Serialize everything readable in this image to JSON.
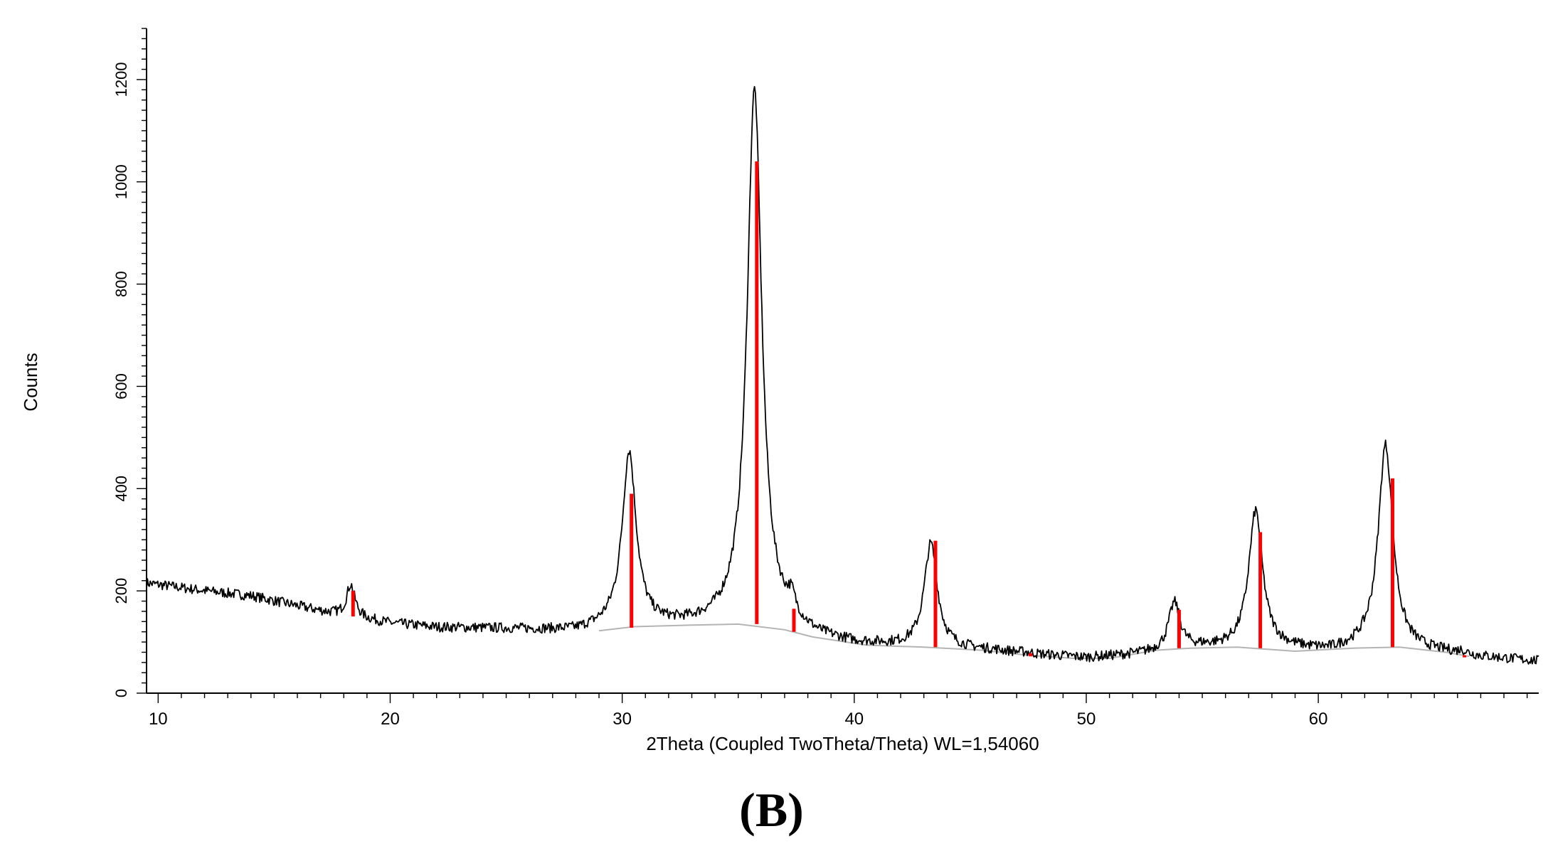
{
  "panel_label": "(B)",
  "chart_data": {
    "type": "line",
    "xlabel": "2Theta (Coupled TwoTheta/Theta) WL=1,54060",
    "ylabel": "Counts",
    "xlim": [
      9.5,
      69.5
    ],
    "ylim": [
      0,
      1300
    ],
    "x_ticks": [
      10,
      20,
      30,
      40,
      50,
      60
    ],
    "y_ticks": [
      0,
      200,
      400,
      600,
      800,
      1000,
      1200
    ],
    "y_tick_labels": [
      "0",
      "200",
      "400",
      "600",
      "800",
      "1000",
      "1200"
    ],
    "grid": false,
    "colors": {
      "trace": "#000000",
      "background_fit": "#b4b4b4",
      "reference_peaks": "#ff0000"
    },
    "background_curve": [
      [
        29.0,
        122
      ],
      [
        30.5,
        130
      ],
      [
        33.0,
        133
      ],
      [
        35.0,
        135
      ],
      [
        37.0,
        124
      ],
      [
        38.2,
        110
      ],
      [
        40.5,
        94
      ],
      [
        43.0,
        90
      ],
      [
        45.5,
        84
      ],
      [
        47.5,
        74
      ],
      [
        49.5,
        68
      ],
      [
        51.0,
        68
      ],
      [
        53.0,
        84
      ],
      [
        54.5,
        88
      ],
      [
        56.5,
        90
      ],
      [
        59.0,
        82
      ],
      [
        61.5,
        88
      ],
      [
        63.5,
        90
      ],
      [
        65.5,
        80
      ],
      [
        66.5,
        72
      ]
    ],
    "profile_points": [
      [
        9.5,
        215
      ],
      [
        12.0,
        200
      ],
      [
        14.0,
        190
      ],
      [
        16.0,
        170
      ],
      [
        17.5,
        155
      ],
      [
        20.0,
        136
      ],
      [
        22.0,
        128
      ],
      [
        25.0,
        125
      ],
      [
        28.0,
        120
      ],
      [
        29.5,
        128
      ],
      [
        33.0,
        130
      ],
      [
        35.0,
        134
      ],
      [
        37.0,
        124
      ],
      [
        38.5,
        105
      ],
      [
        40.0,
        95
      ],
      [
        42.0,
        90
      ],
      [
        46.0,
        82
      ],
      [
        48.0,
        74
      ],
      [
        50.0,
        68
      ],
      [
        52.0,
        74
      ],
      [
        55.0,
        88
      ],
      [
        58.5,
        86
      ],
      [
        60.5,
        80
      ],
      [
        62.0,
        86
      ],
      [
        65.5,
        78
      ],
      [
        67.0,
        70
      ],
      [
        69.5,
        62
      ]
    ],
    "diffraction_peaks": [
      {
        "x": 18.3,
        "height": 212,
        "width": 0.22
      },
      {
        "x": 30.3,
        "height": 470,
        "width": 0.36
      },
      {
        "x": 35.7,
        "height": 1180,
        "width": 0.38
      },
      {
        "x": 37.3,
        "height": 155,
        "width": 0.2
      },
      {
        "x": 43.3,
        "height": 290,
        "width": 0.34
      },
      {
        "x": 47.4,
        "height": 78,
        "width": 0.2
      },
      {
        "x": 53.8,
        "height": 175,
        "width": 0.3
      },
      {
        "x": 57.3,
        "height": 355,
        "width": 0.36
      },
      {
        "x": 62.9,
        "height": 485,
        "width": 0.38
      },
      {
        "x": 66.2,
        "height": 80,
        "width": 0.2
      }
    ],
    "noise_amplitude": 10,
    "reference_peaks": [
      {
        "x": 18.4,
        "y_top": 200,
        "y_base": 150
      },
      {
        "x": 30.4,
        "y_top": 390,
        "y_base": 128
      },
      {
        "x": 35.8,
        "y_top": 1040,
        "y_base": 135
      },
      {
        "x": 37.4,
        "y_top": 165,
        "y_base": 120
      },
      {
        "x": 43.5,
        "y_top": 298,
        "y_base": 90
      },
      {
        "x": 47.6,
        "y_top": 78,
        "y_base": 72
      },
      {
        "x": 54.0,
        "y_top": 163,
        "y_base": 88
      },
      {
        "x": 57.5,
        "y_top": 315,
        "y_base": 88
      },
      {
        "x": 63.2,
        "y_top": 420,
        "y_base": 90
      },
      {
        "x": 66.3,
        "y_top": 74,
        "y_base": 70
      }
    ]
  }
}
